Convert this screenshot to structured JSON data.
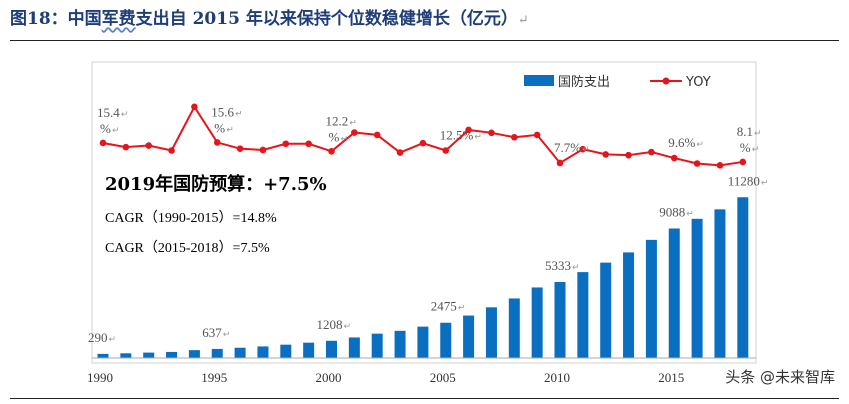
{
  "figure": {
    "title_prefix": "图18：中国",
    "title_underlined": "军费",
    "title_suffix": "支出自 2015 年以来保持个位数稳健增长（亿元）",
    "return_mark": "↵"
  },
  "watermark": "头条 @未来智库",
  "colors": {
    "bar": "#0a6fc0",
    "line": "#e8141a",
    "title": "#1f3e78"
  },
  "chart_data": {
    "type": "bar+line",
    "x": [
      1990,
      1991,
      1992,
      1993,
      1994,
      1995,
      1996,
      1997,
      1998,
      1999,
      2000,
      2001,
      2002,
      2003,
      2004,
      2005,
      2006,
      2007,
      2008,
      2009,
      2010,
      2011,
      2012,
      2013,
      2014,
      2015,
      2016,
      2017,
      2018
    ],
    "x_tick_labels": [
      "1990",
      "1995",
      "2000",
      "2005",
      "2010",
      "2015"
    ],
    "series": [
      {
        "name": "国防支出",
        "kind": "bar",
        "values": [
          290,
          330,
          378,
          425,
          550,
          637,
          720,
          812,
          935,
          1076,
          1208,
          1442,
          1708,
          1908,
          2200,
          2475,
          2979,
          3555,
          4179,
          4951,
          5333,
          6028,
          6692,
          7411,
          8290,
          9088,
          9766,
          10432,
          11280
        ]
      },
      {
        "name": "YOY",
        "kind": "line",
        "values": [
          15.4,
          13.8,
          14.4,
          12.5,
          29.3,
          15.6,
          13.2,
          12.7,
          15.1,
          15.1,
          12.2,
          19.4,
          18.5,
          11.7,
          15.3,
          12.5,
          20.4,
          19.3,
          17.6,
          18.5,
          7.7,
          13.0,
          11.0,
          10.7,
          11.9,
          9.6,
          7.5,
          6.8,
          8.1
        ]
      }
    ],
    "bar_labels": [
      {
        "index": 0,
        "text": "290"
      },
      {
        "index": 5,
        "text": "637"
      },
      {
        "index": 10,
        "text": "1208"
      },
      {
        "index": 15,
        "text": "2475"
      },
      {
        "index": 20,
        "text": "5333"
      },
      {
        "index": 25,
        "text": "9088"
      },
      {
        "index": 28,
        "text": "11280"
      }
    ],
    "line_labels": [
      {
        "index": 0,
        "text": "15.4",
        "text2": "%"
      },
      {
        "index": 5,
        "text": "15.6",
        "text2": "%"
      },
      {
        "index": 10,
        "text": "12.2",
        "text2": "%"
      },
      {
        "index": 15,
        "text": "12.5%",
        "text2": ""
      },
      {
        "index": 20,
        "text": "7.7%",
        "text2": ""
      },
      {
        "index": 25,
        "text": "9.6%",
        "text2": ""
      },
      {
        "index": 28,
        "text": "8.1",
        "text2": "%"
      }
    ],
    "annotations": [
      "2019年国防预算：+7.5%",
      "CAGR（1990-2015）=14.8%",
      "CAGR（2015-2018）=7.5%"
    ],
    "legend_position": "top-right",
    "bar_ylim": [
      0,
      12000
    ],
    "line_ylim": [
      -50,
      40
    ],
    "grid": false
  }
}
